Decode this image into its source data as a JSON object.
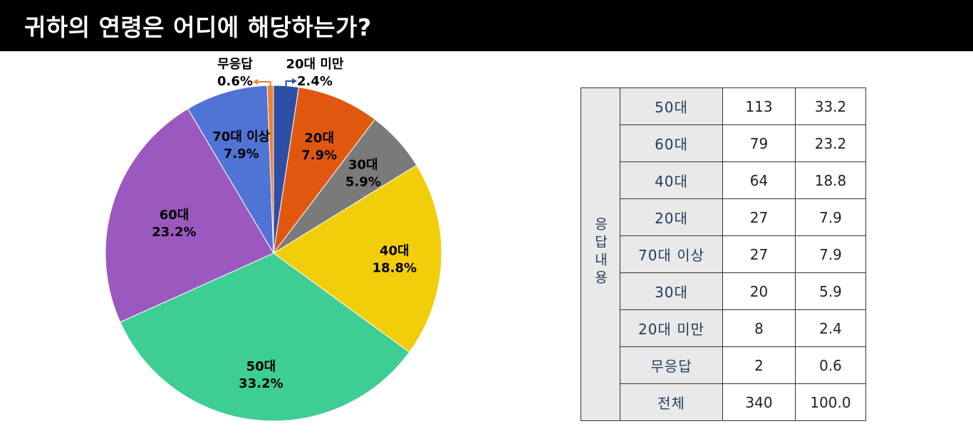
{
  "title": "귀하의 연령은 어디에 해당하는가?",
  "chart_data": {
    "type": "pie",
    "slices": [
      {
        "label": "20대 미만",
        "value": 2.4,
        "color": "#2f4ea6"
      },
      {
        "label": "20대",
        "value": 7.9,
        "color": "#e0580f"
      },
      {
        "label": "30대",
        "value": 5.9,
        "color": "#7a7a7a"
      },
      {
        "label": "40대",
        "value": 18.8,
        "color": "#f2cd0a"
      },
      {
        "label": "50대",
        "value": 33.2,
        "color": "#3dce94"
      },
      {
        "label": "60대",
        "value": 23.2,
        "color": "#9b59c0"
      },
      {
        "label": "70대 이상",
        "value": 7.9,
        "color": "#5073d6"
      },
      {
        "label": "무응답",
        "value": 0.6,
        "color": "#f0812e"
      }
    ],
    "unit": "%"
  },
  "table": {
    "group_label": "응답내용",
    "rows": [
      {
        "label": "50대",
        "count": "113",
        "percent": "33.2"
      },
      {
        "label": "60대",
        "count": "79",
        "percent": "23.2"
      },
      {
        "label": "40대",
        "count": "64",
        "percent": "18.8"
      },
      {
        "label": "20대",
        "count": "27",
        "percent": "7.9"
      },
      {
        "label": "70대 이상",
        "count": "27",
        "percent": "7.9"
      },
      {
        "label": "30대",
        "count": "20",
        "percent": "5.9"
      },
      {
        "label": "20대 미만",
        "count": "8",
        "percent": "2.4"
      },
      {
        "label": "무응답",
        "count": "2",
        "percent": "0.6"
      }
    ],
    "total": {
      "label": "전체",
      "count": "340",
      "percent": "100.0"
    }
  }
}
